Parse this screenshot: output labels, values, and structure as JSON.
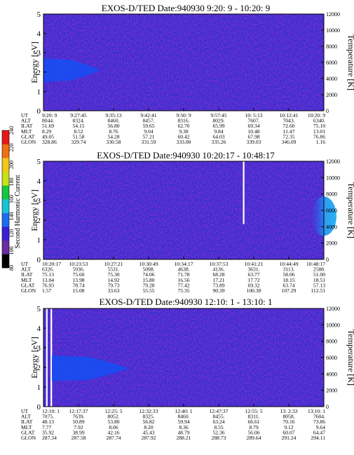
{
  "chart_data": [
    {
      "type": "heatmap",
      "title": "EXOS-D/TED   Date:940930  9:20: 9 - 10:20: 9",
      "ylabel": "Energy [eV]",
      "y2label": "Temperature [K]",
      "ylim": [
        0,
        5
      ],
      "yticks": [
        0,
        1,
        2,
        3,
        4,
        5
      ],
      "y2lim": [
        0,
        12000
      ],
      "y2ticks": [
        0,
        2000,
        4000,
        6000,
        8000,
        10000,
        12000
      ],
      "ut_ticks": [
        "9:20: 9",
        "9:27:45",
        "9:35:13",
        "9:42:41",
        "9:50: 9",
        "9:57:45",
        "10: 5:13",
        "10:12:41",
        "10:20: 9"
      ],
      "table_rows": [
        {
          "label": "UT",
          "values": [
            "9:20: 9",
            "9:27:45",
            "9:35:13",
            "9:42:41",
            "9:50: 9",
            "9:57:45",
            "10: 5:13",
            "10:12:41",
            "10:20: 9"
          ]
        },
        {
          "label": "ALT",
          "values": [
            "8044.",
            "8324.",
            "8460.",
            "8457.",
            "8316.",
            "8029.",
            "7607.",
            "7043.",
            "6340."
          ]
        },
        {
          "label": "ILAT",
          "values": [
            "51.69",
            "54.15",
            "56.80",
            "59.65",
            "62.70",
            "65.99",
            "69.34",
            "72.60",
            "75.10"
          ]
        },
        {
          "label": "MLT",
          "values": [
            "8.29",
            "8.52",
            "8.76",
            "9.04",
            "9.38",
            "9.84",
            "10.48",
            "11.47",
            "13.01"
          ]
        },
        {
          "label": "GLAT",
          "values": [
            "49.05",
            "51.58",
            "54.28",
            "57.21",
            "60.42",
            "64.03",
            "67.98",
            "72.35",
            "76.86"
          ]
        },
        {
          "label": "GLON",
          "values": [
            "328.86",
            "329.74",
            "330.58",
            "331.59",
            "333.00",
            "335.26",
            "339.03",
            "346.09",
            "1.16"
          ]
        }
      ],
      "features": [
        {
          "kind": "enhanced-band",
          "t_start": 0.0,
          "t_end": 0.2,
          "e_low": 1.5,
          "e_high": 2.7,
          "color": "#1a4cf0"
        }
      ]
    },
    {
      "type": "heatmap",
      "title": "EXOS-D/TED   Date:940930  10:20:17 - 10:48:17",
      "ylabel": "Energy [eV]",
      "y2label": "Temperature [K]",
      "ylim": [
        0,
        5
      ],
      "yticks": [
        0,
        1,
        2,
        3,
        4,
        5
      ],
      "y2lim": [
        0,
        12000
      ],
      "y2ticks": [
        0,
        2000,
        4000,
        6000,
        8000,
        10000,
        12000
      ],
      "ut_ticks": [
        "10:20:17",
        "10:23:53",
        "10:27:21",
        "10:30:49",
        "10:34:17",
        "10:37:53",
        "10:41:21",
        "10:44:49",
        "10:48:17"
      ],
      "table_rows": [
        {
          "label": "UT",
          "values": [
            "10:20:17",
            "10:23:53",
            "10:27:21",
            "10:30:49",
            "10:34:17",
            "10:37:53",
            "10:41:21",
            "10:44:49",
            "10:48:17"
          ]
        },
        {
          "label": "ALT",
          "values": [
            "6326.",
            "5936.",
            "5531.",
            "5098.",
            "4638.",
            "4136.",
            "3631.",
            "3113.",
            "2588."
          ]
        },
        {
          "label": "ILAT",
          "values": [
            "75.13",
            "75.60",
            "75.30",
            "74.06",
            "71.78",
            "68.28",
            "63.77",
            "58.06",
            "51.00"
          ]
        },
        {
          "label": "MLT",
          "values": [
            "13.04",
            "13.98",
            "14.92",
            "15.80",
            "16.56",
            "17.21",
            "17.72",
            "18.15",
            "18.51"
          ]
        },
        {
          "label": "GLAT",
          "values": [
            "76.93",
            "78.74",
            "79.73",
            "79.28",
            "77.42",
            "73.89",
            "69.32",
            "63.74",
            "57.13"
          ]
        },
        {
          "label": "GLON",
          "values": [
            "1.57",
            "15.08",
            "33.63",
            "55.55",
            "75.35",
            "90.39",
            "100.30",
            "107.29",
            "112.51"
          ]
        }
      ],
      "features": [
        {
          "kind": "data-gap-line",
          "t": 0.714,
          "e_low": 1.8,
          "e_high": 5.0,
          "color": "#ffffff"
        },
        {
          "kind": "enhanced-blob",
          "t_start": 0.955,
          "t_end": 1.0,
          "e_low": 1.2,
          "e_high": 3.2,
          "color": "#1c8ef0"
        }
      ]
    },
    {
      "type": "heatmap",
      "title": "EXOS-D/TED   Date:940930  12:10: 1 - 13:10: 1",
      "ylabel": "Energy [eV]",
      "y2label": "Temperature [K]",
      "ylim": [
        0,
        5
      ],
      "yticks": [
        0,
        1,
        2,
        3,
        4,
        5
      ],
      "y2lim": [
        0,
        12000
      ],
      "y2ticks": [
        0,
        2000,
        4000,
        6000,
        8000,
        10000,
        12000
      ],
      "ut_ticks": [
        "12:10: 1",
        "12:17:37",
        "12:25: 5",
        "12:32:33",
        "12:40: 1",
        "12:47:37",
        "12:55: 5",
        "13: 2:33",
        "13:10: 1"
      ],
      "table_rows": [
        {
          "label": "UT",
          "values": [
            "12:10: 1",
            "12:17:37",
            "12:25: 5",
            "12:32:33",
            "12:40: 1",
            "12:47:37",
            "12:55: 5",
            "13: 2:33",
            "13:10: 1"
          ]
        },
        {
          "label": "ALT",
          "values": [
            "7075.",
            "7639.",
            "8052.",
            "8325.",
            "8460.",
            "8455.",
            "8311.",
            "8058.",
            "7604."
          ]
        },
        {
          "label": "ILAT",
          "values": [
            "48.13",
            "50.89",
            "53.80",
            "56.82",
            "59.94",
            "63.24",
            "66.61",
            "70.16",
            "73.86"
          ]
        },
        {
          "label": "MLT",
          "values": [
            "7.77",
            "7.92",
            "8.06",
            "8.20",
            "8.36",
            "8.55",
            "8.79",
            "9.12",
            "9.64"
          ]
        },
        {
          "label": "GLAT",
          "values": [
            "35.92",
            "38.99",
            "42.16",
            "45.43",
            "48.79",
            "52.36",
            "56.06",
            "60.07",
            "64.47"
          ]
        },
        {
          "label": "GLON",
          "values": [
            "287.34",
            "287.58",
            "287.74",
            "287.92",
            "288.21",
            "288.73",
            "289.64",
            "291.24",
            "294.11"
          ]
        }
      ],
      "features": [
        {
          "kind": "data-gap-line",
          "t": 0.012,
          "e_low": 0.0,
          "e_high": 5.0,
          "color": "#ffffff"
        },
        {
          "kind": "data-gap-line",
          "t": 0.028,
          "e_low": 0.0,
          "e_high": 5.0,
          "color": "#ffffff"
        },
        {
          "kind": "enhanced-band",
          "t_start": 0.03,
          "t_end": 0.3,
          "e_low": 1.3,
          "e_high": 2.6,
          "color": "#1a4cf0"
        }
      ]
    }
  ],
  "colorbar": {
    "label": "Second Harmonic Current",
    "ticks": [
      "80",
      "100",
      "120",
      "140",
      "160",
      "180",
      "200",
      "220",
      "240"
    ],
    "colors": [
      "#000000",
      "#6a2aa0",
      "#3a1ed8",
      "#1c6cf0",
      "#16c4d8",
      "#18c83c",
      "#c8e018",
      "#f0c818",
      "#f07010",
      "#e81818"
    ]
  }
}
